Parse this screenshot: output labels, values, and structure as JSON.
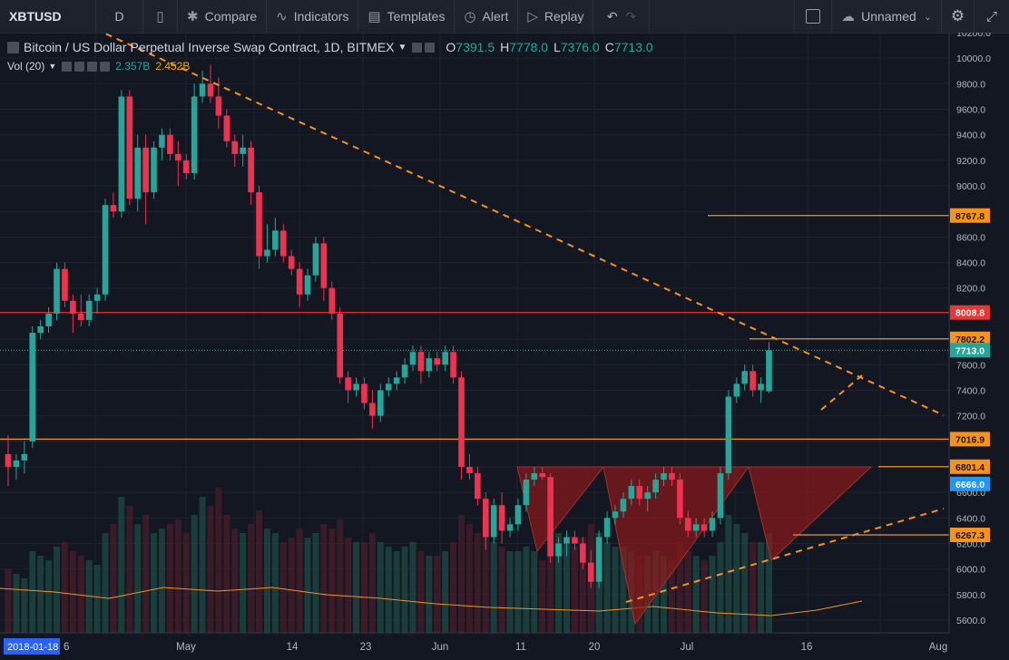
{
  "toolbar": {
    "symbol": "XBTUSD",
    "interval": "D",
    "compare": "Compare",
    "indicators": "Indicators",
    "templates": "Templates",
    "alert": "Alert",
    "replay": "Replay",
    "layout_name": "Unnamed"
  },
  "legend": {
    "title": "Bitcoin / US Dollar Perpetual Inverse Swap Contract, 1D, BITMEX",
    "open_label": "O",
    "open": "7391.5",
    "high_label": "H",
    "high": "7778.0",
    "low_label": "L",
    "low": "7376.0",
    "close_label": "C",
    "close": "7713.0"
  },
  "volume": {
    "label": "Vol (20)",
    "value1": "2.357B",
    "value2": "2.452B"
  },
  "colors": {
    "up": "#26a69a",
    "down": "#ef3250",
    "bg": "#131722",
    "trend": "#f7931a",
    "resistance": "#e53935",
    "pattern_fill": "#8b1a1a"
  },
  "chart_data": {
    "type": "candlestick",
    "y_range": [
      5500,
      10200
    ],
    "y_ticks": [
      "10200.0",
      "10000.0",
      "9800.0",
      "9600.0",
      "9400.0",
      "9200.0",
      "9000.0",
      "8800.0",
      "8600.0",
      "8400.0",
      "8200.0",
      "8000.0",
      "7800.0",
      "7600.0",
      "7400.0",
      "7200.0",
      "7000.0",
      "6800.0",
      "6600.0",
      "6400.0",
      "6200.0",
      "6000.0",
      "5800.0",
      "5600.0"
    ],
    "x_ticks": [
      "May",
      "14",
      "23",
      "Jun",
      "11",
      "20",
      "Jul",
      "16",
      "Aug"
    ],
    "x_start_label": "2018-01-18",
    "x_start_suffix": "6",
    "price_labels": [
      {
        "value": "8767.8",
        "kind": "orange"
      },
      {
        "value": "8008.8",
        "kind": "red"
      },
      {
        "value": "7802.2",
        "kind": "orange"
      },
      {
        "value": "7713.0",
        "kind": "green"
      },
      {
        "value": "7016.9",
        "kind": "orange"
      },
      {
        "value": "6801.4",
        "kind": "orange"
      },
      {
        "value": "6666.0",
        "kind": "blue"
      },
      {
        "value": "6267.3",
        "kind": "orange"
      }
    ],
    "candles": [
      [
        6900,
        7050,
        6650,
        6800
      ],
      [
        6800,
        6900,
        6700,
        6850
      ],
      [
        6850,
        7000,
        6750,
        6900
      ],
      [
        7000,
        7900,
        6950,
        7850
      ],
      [
        7850,
        7950,
        7800,
        7900
      ],
      [
        7900,
        8050,
        7850,
        8000
      ],
      [
        8000,
        8400,
        7950,
        8350
      ],
      [
        8350,
        8400,
        8050,
        8100
      ],
      [
        8100,
        8150,
        7850,
        8000
      ],
      [
        8000,
        8150,
        7900,
        7950
      ],
      [
        7950,
        8150,
        7900,
        8100
      ],
      [
        8100,
        8200,
        8000,
        8150
      ],
      [
        8150,
        8900,
        8100,
        8850
      ],
      [
        8850,
        8950,
        8750,
        8800
      ],
      [
        8800,
        9750,
        8750,
        9700
      ],
      [
        9700,
        9750,
        8850,
        8900
      ],
      [
        8900,
        9400,
        8800,
        9300
      ],
      [
        9300,
        9400,
        8700,
        8950
      ],
      [
        8950,
        9350,
        8900,
        9300
      ],
      [
        9300,
        9450,
        9200,
        9400
      ],
      [
        9400,
        9450,
        9200,
        9250
      ],
      [
        9250,
        9350,
        9000,
        9200
      ],
      [
        9200,
        9250,
        9050,
        9100
      ],
      [
        9100,
        9800,
        9050,
        9700
      ],
      [
        9700,
        9900,
        9650,
        9800
      ],
      [
        9800,
        9950,
        9650,
        9700
      ],
      [
        9700,
        9850,
        9450,
        9550
      ],
      [
        9550,
        9600,
        9300,
        9350
      ],
      [
        9350,
        9400,
        9150,
        9250
      ],
      [
        9250,
        9400,
        9150,
        9300
      ],
      [
        9300,
        9350,
        8850,
        8950
      ],
      [
        8950,
        9000,
        8350,
        8450
      ],
      [
        8450,
        8700,
        8400,
        8500
      ],
      [
        8500,
        8750,
        8450,
        8650
      ],
      [
        8650,
        8700,
        8400,
        8450
      ],
      [
        8450,
        8500,
        8300,
        8350
      ],
      [
        8350,
        8400,
        8050,
        8150
      ],
      [
        8150,
        8350,
        8100,
        8300
      ],
      [
        8300,
        8600,
        8250,
        8550
      ],
      [
        8550,
        8600,
        8100,
        8200
      ],
      [
        8200,
        8250,
        7950,
        8000
      ],
      [
        8000,
        8050,
        7450,
        7500
      ],
      [
        7500,
        7550,
        7300,
        7400
      ],
      [
        7400,
        7500,
        7350,
        7450
      ],
      [
        7450,
        7500,
        7250,
        7300
      ],
      [
        7300,
        7400,
        7100,
        7200
      ],
      [
        7200,
        7450,
        7150,
        7400
      ],
      [
        7400,
        7500,
        7350,
        7450
      ],
      [
        7450,
        7550,
        7400,
        7500
      ],
      [
        7500,
        7650,
        7450,
        7600
      ],
      [
        7600,
        7750,
        7550,
        7700
      ],
      [
        7700,
        7750,
        7450,
        7550
      ],
      [
        7550,
        7700,
        7500,
        7650
      ],
      [
        7650,
        7700,
        7550,
        7600
      ],
      [
        7600,
        7750,
        7550,
        7700
      ],
      [
        7700,
        7750,
        7450,
        7500
      ],
      [
        7500,
        7550,
        6700,
        6800
      ],
      [
        6800,
        6900,
        6700,
        6750
      ],
      [
        6750,
        6800,
        6500,
        6550
      ],
      [
        6550,
        6600,
        6150,
        6250
      ],
      [
        6250,
        6550,
        6200,
        6500
      ],
      [
        6500,
        6600,
        6200,
        6300
      ],
      [
        6300,
        6400,
        6250,
        6350
      ],
      [
        6350,
        6550,
        6300,
        6500
      ],
      [
        6500,
        6750,
        6450,
        6700
      ],
      [
        6700,
        6800,
        6650,
        6750
      ],
      [
        6750,
        6800,
        6700,
        6720
      ],
      [
        6720,
        6750,
        6050,
        6100
      ],
      [
        6100,
        6250,
        6050,
        6200
      ],
      [
        6200,
        6300,
        6100,
        6250
      ],
      [
        6250,
        6300,
        6150,
        6200
      ],
      [
        6200,
        6250,
        6000,
        6050
      ],
      [
        6050,
        6150,
        5850,
        5900
      ],
      [
        5900,
        6300,
        5850,
        6250
      ],
      [
        6250,
        6450,
        6200,
        6400
      ],
      [
        6400,
        6500,
        6350,
        6450
      ],
      [
        6450,
        6600,
        6400,
        6550
      ],
      [
        6550,
        6700,
        6500,
        6650
      ],
      [
        6650,
        6700,
        6500,
        6550
      ],
      [
        6550,
        6650,
        6450,
        6600
      ],
      [
        6600,
        6750,
        6550,
        6700
      ],
      [
        6700,
        6800,
        6650,
        6750
      ],
      [
        6750,
        6800,
        6650,
        6700
      ],
      [
        6700,
        6750,
        6350,
        6400
      ],
      [
        6400,
        6450,
        6250,
        6300
      ],
      [
        6300,
        6400,
        6250,
        6350
      ],
      [
        6350,
        6400,
        6250,
        6300
      ],
      [
        6300,
        6450,
        6250,
        6400
      ],
      [
        6400,
        6800,
        6350,
        6750
      ],
      [
        6750,
        7400,
        6700,
        7350
      ],
      [
        7350,
        7500,
        7300,
        7450
      ],
      [
        7450,
        7600,
        7400,
        7550
      ],
      [
        7550,
        7600,
        7350,
        7400
      ],
      [
        7400,
        7500,
        7300,
        7450
      ],
      [
        7391.5,
        7778,
        7376,
        7713
      ]
    ]
  }
}
